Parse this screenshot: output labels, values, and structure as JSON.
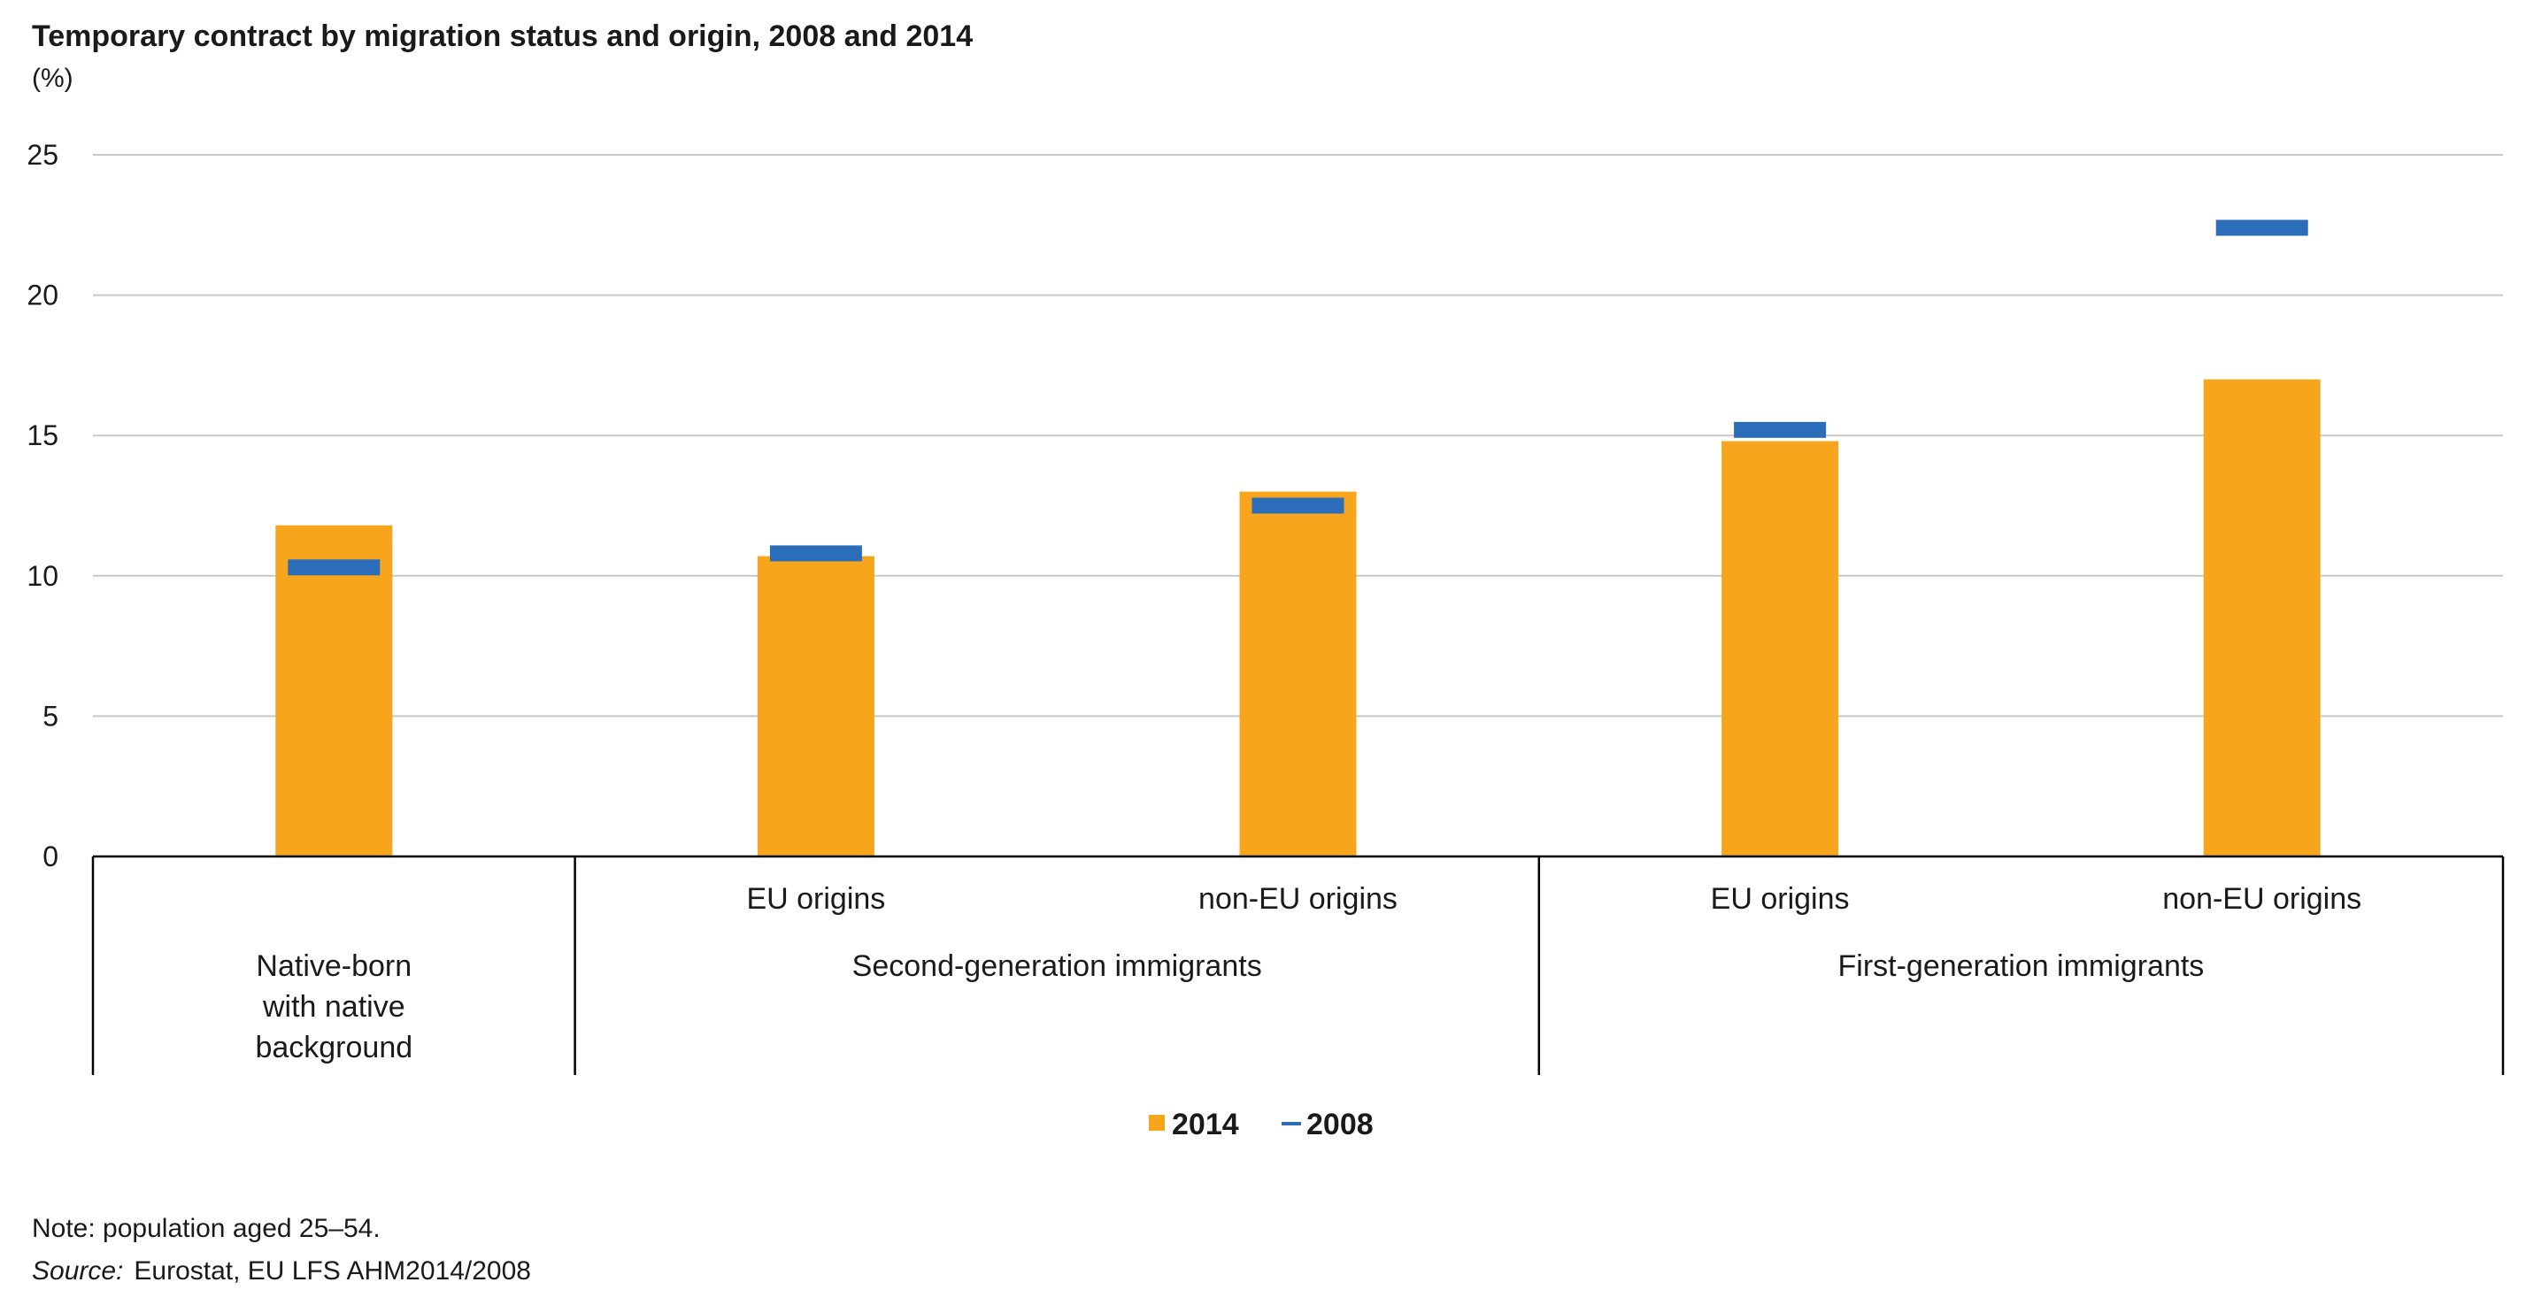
{
  "chart_data": {
    "type": "bar",
    "title": "Temporary contract by migration status and origin, 2008 and 2014",
    "unit_label": "(%)",
    "xlabel": "",
    "ylabel": "(%)",
    "ylim": [
      0,
      25
    ],
    "yticks": [
      0,
      5,
      10,
      15,
      20,
      25
    ],
    "grid": true,
    "categories": [
      {
        "sub": "",
        "group": "Native-born with native background",
        "group_lines": [
          "Native-born",
          "with native",
          "background"
        ]
      },
      {
        "sub": "EU origins",
        "group": "Second-generation immigrants"
      },
      {
        "sub": "non-EU origins",
        "group": "Second-generation immigrants"
      },
      {
        "sub": "EU origins",
        "group": "First-generation immigrants"
      },
      {
        "sub": "non-EU origins",
        "group": "First-generation immigrants"
      }
    ],
    "groups": [
      {
        "name": "Native-born with native background",
        "lines": [
          "Native-born",
          "with native",
          "background"
        ],
        "start": 0,
        "count": 1
      },
      {
        "name": "Second-generation immigrants",
        "lines": [
          "Second-generation immigrants"
        ],
        "start": 1,
        "count": 2
      },
      {
        "name": "First-generation immigrants",
        "lines": [
          "First-generation immigrants"
        ],
        "start": 3,
        "count": 2
      }
    ],
    "series": [
      {
        "name": "2014",
        "kind": "bar",
        "color": "#F7A51C",
        "values": [
          11.8,
          10.7,
          13.0,
          14.8,
          17.0
        ]
      },
      {
        "name": "2008",
        "kind": "marker",
        "color": "#2B6DB8",
        "values": [
          10.3,
          10.8,
          12.5,
          15.2,
          22.4
        ]
      }
    ],
    "legend": {
      "position": "bottom-center",
      "items": [
        {
          "label": "2014",
          "color": "#F7A51C",
          "symbol": "square"
        },
        {
          "label": "2008",
          "color": "#2B6DB8",
          "symbol": "dash"
        }
      ]
    }
  },
  "notes": {
    "note_text": "Note: population aged 25–54.",
    "source_label": "Source:",
    "source_text": "Eurostat, EU LFS AHM2014/2008"
  },
  "colors": {
    "grid": "#C8C8C8",
    "axis": "#000000",
    "text": "#1a1a1a"
  }
}
